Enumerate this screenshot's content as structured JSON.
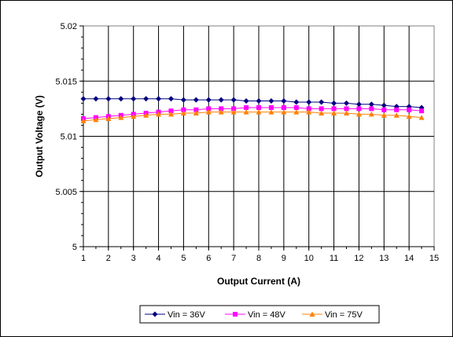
{
  "chart_data": {
    "type": "line",
    "title": "",
    "xlabel": "Output Current (A)",
    "ylabel": "Output Voltage (V)",
    "xlim": [
      1,
      15
    ],
    "ylim": [
      5.0,
      5.02
    ],
    "x_ticks": [
      "1",
      "2",
      "3",
      "4",
      "5",
      "6",
      "7",
      "8",
      "9",
      "10",
      "11",
      "12",
      "13",
      "14",
      "15"
    ],
    "y_ticks": [
      "5",
      "5.005",
      "5.01",
      "5.015",
      "5.02"
    ],
    "y_tick_values": [
      5.0,
      5.005,
      5.01,
      5.015,
      5.02
    ],
    "grid": true,
    "legend_position": "bottom",
    "x": [
      1.0,
      1.5,
      2.0,
      2.5,
      3.0,
      3.5,
      4.0,
      4.5,
      5.0,
      5.5,
      6.0,
      6.5,
      7.0,
      7.5,
      8.0,
      8.5,
      9.0,
      9.5,
      10.0,
      10.5,
      11.0,
      11.5,
      12.0,
      12.5,
      13.0,
      13.5,
      14.0,
      14.5
    ],
    "series": [
      {
        "name": "Vin = 36V",
        "color": "#000080",
        "marker": "diamond",
        "values": [
          5.0134,
          5.0134,
          5.0134,
          5.0134,
          5.0134,
          5.0134,
          5.0134,
          5.0134,
          5.0133,
          5.0133,
          5.0133,
          5.0133,
          5.0133,
          5.0132,
          5.0132,
          5.0132,
          5.0132,
          5.0131,
          5.0131,
          5.0131,
          5.013,
          5.013,
          5.0129,
          5.0129,
          5.0128,
          5.0127,
          5.0127,
          5.0126
        ]
      },
      {
        "name": "Vin = 48V",
        "color": "#ff00ff",
        "marker": "square",
        "values": [
          5.0116,
          5.0117,
          5.0118,
          5.0119,
          5.012,
          5.0121,
          5.0122,
          5.0123,
          5.0124,
          5.0124,
          5.0125,
          5.0125,
          5.0125,
          5.0126,
          5.0126,
          5.0126,
          5.0126,
          5.0126,
          5.0125,
          5.0125,
          5.0125,
          5.0125,
          5.0125,
          5.0125,
          5.0124,
          5.0124,
          5.0124,
          5.0123
        ]
      },
      {
        "name": "Vin = 75V",
        "color": "#ff8000",
        "marker": "triangle",
        "values": [
          5.0114,
          5.0115,
          5.0116,
          5.0117,
          5.0118,
          5.0119,
          5.012,
          5.012,
          5.0121,
          5.0121,
          5.0122,
          5.0122,
          5.0122,
          5.0122,
          5.0122,
          5.0122,
          5.0122,
          5.0122,
          5.0122,
          5.0121,
          5.0121,
          5.0121,
          5.012,
          5.012,
          5.0119,
          5.0119,
          5.0118,
          5.0117
        ]
      }
    ]
  }
}
